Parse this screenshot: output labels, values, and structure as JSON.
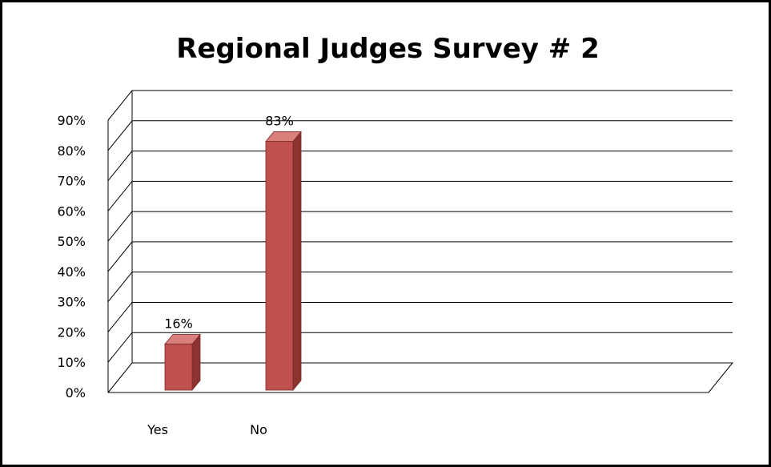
{
  "chart_data": {
    "type": "bar",
    "title": "Regional Judges Survey # 2",
    "categories": [
      "Yes",
      "No"
    ],
    "values": [
      16,
      83
    ],
    "data_labels": [
      "16%",
      "83%"
    ],
    "y_ticks": [
      "0%",
      "10%",
      "20%",
      "30%",
      "40%",
      "50%",
      "60%",
      "70%",
      "80%",
      "90%"
    ],
    "ylim": [
      0,
      90
    ],
    "grid": true,
    "legend": "none",
    "three_d": true,
    "bar_color": "#c0504d",
    "bar_side_color": "#8c3330",
    "bar_top_color": "#d9807d",
    "gridline_color": "#000000"
  }
}
